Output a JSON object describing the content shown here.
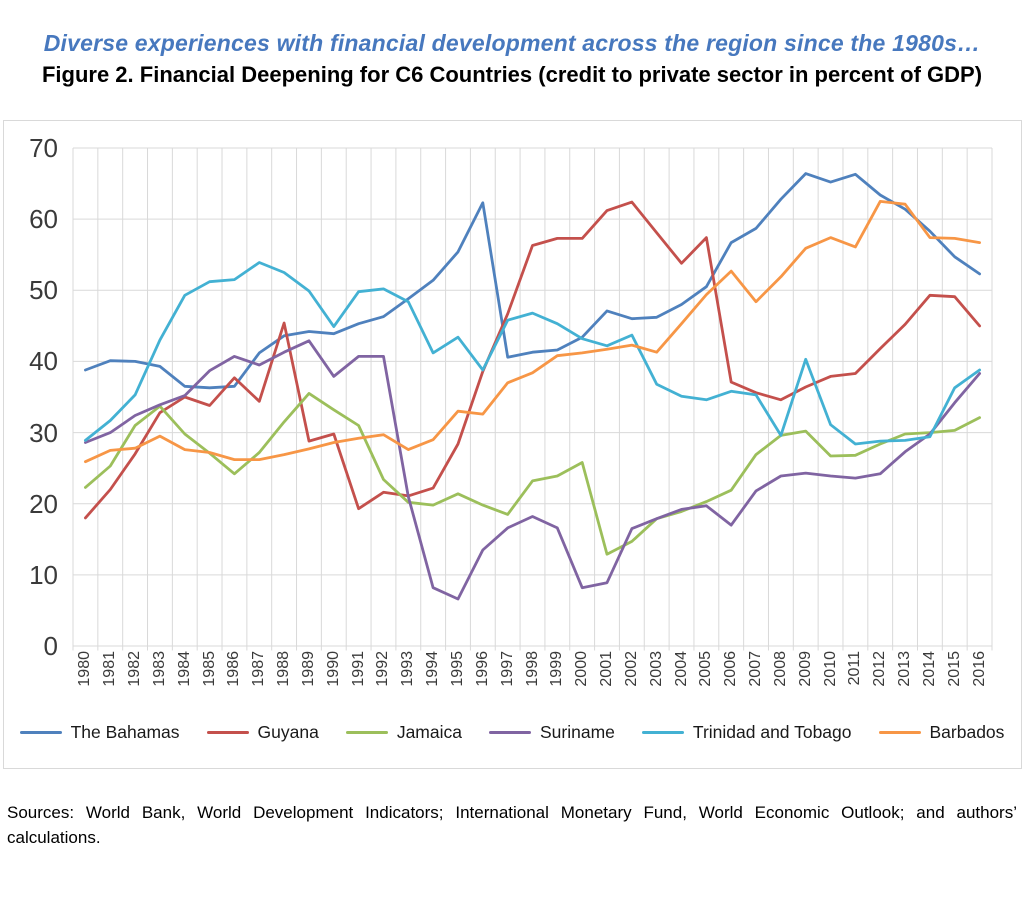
{
  "header": {
    "subtitle": "Diverse experiences with financial development across the region since the 1980s…",
    "figure_caption": "Figure 2. Financial Deepening for C6 Countries (credit to private sector in percent of GDP)"
  },
  "chart_data": {
    "type": "line",
    "x": [
      1980,
      1981,
      1982,
      1983,
      1984,
      1985,
      1986,
      1987,
      1988,
      1989,
      1990,
      1991,
      1992,
      1993,
      1994,
      1995,
      1996,
      1997,
      1998,
      1999,
      2000,
      2001,
      2002,
      2003,
      2004,
      2005,
      2006,
      2007,
      2008,
      2009,
      2010,
      2011,
      2012,
      2013,
      2014,
      2015,
      2016
    ],
    "series": [
      {
        "name": "The Bahamas",
        "color": "#4F81BD",
        "values": [
          38.8,
          40.1,
          40.0,
          39.3,
          36.5,
          36.3,
          36.5,
          41.2,
          43.6,
          44.2,
          43.9,
          45.3,
          46.3,
          48.8,
          51.4,
          55.4,
          62.3,
          40.6,
          41.3,
          41.6,
          43.4,
          47.1,
          46.0,
          46.2,
          48.0,
          50.5,
          56.7,
          58.7,
          62.8,
          66.4,
          65.2,
          66.3,
          63.4,
          61.4,
          58.3,
          54.7,
          52.3
        ]
      },
      {
        "name": "Guyana",
        "color": "#C4504C",
        "values": [
          18.0,
          22.0,
          27.0,
          32.8,
          35.0,
          33.8,
          37.7,
          34.4,
          45.4,
          28.8,
          29.8,
          19.3,
          21.6,
          21.1,
          22.2,
          28.4,
          38.6,
          46.7,
          56.3,
          57.3,
          57.3,
          61.2,
          62.4,
          58.1,
          53.8,
          57.4,
          37.1,
          35.6,
          34.6,
          36.4,
          37.9,
          38.3,
          41.8,
          45.2,
          49.3,
          49.1,
          45.0
        ]
      },
      {
        "name": "Jamaica",
        "color": "#9CBF5B",
        "values": [
          22.3,
          25.3,
          31.0,
          33.7,
          29.8,
          27.1,
          24.2,
          27.2,
          31.5,
          35.5,
          33.2,
          31.0,
          23.4,
          20.2,
          19.8,
          21.4,
          19.8,
          18.5,
          23.2,
          23.9,
          25.8,
          12.9,
          14.7,
          17.9,
          18.9,
          20.3,
          21.9,
          26.9,
          29.6,
          30.2,
          26.7,
          26.8,
          28.4,
          29.8,
          30.0,
          30.3,
          32.1
        ]
      },
      {
        "name": "Suriname",
        "color": "#8064A2",
        "values": [
          28.6,
          30.0,
          32.4,
          33.9,
          35.2,
          38.7,
          40.7,
          39.5,
          41.3,
          42.9,
          37.9,
          40.7,
          40.7,
          21.0,
          8.2,
          6.6,
          13.5,
          16.6,
          18.2,
          16.6,
          8.2,
          8.9,
          16.5,
          17.9,
          19.2,
          19.7,
          17.0,
          21.8,
          23.9,
          24.3,
          23.9,
          23.6,
          24.2,
          27.3,
          29.8,
          34.2,
          38.3
        ]
      },
      {
        "name": "Trinidad and Tobago",
        "color": "#43B1D3",
        "values": [
          28.9,
          31.7,
          35.3,
          43.0,
          49.3,
          51.2,
          51.5,
          53.9,
          52.5,
          49.9,
          44.9,
          49.8,
          50.2,
          48.4,
          41.2,
          43.4,
          38.8,
          45.8,
          46.8,
          45.3,
          43.2,
          42.2,
          43.7,
          36.8,
          35.1,
          34.6,
          35.8,
          35.3,
          29.6,
          40.3,
          31.1,
          28.4,
          28.8,
          28.9,
          29.4,
          36.3,
          38.8
        ]
      },
      {
        "name": "Barbados",
        "color": "#F79646",
        "values": [
          25.9,
          27.5,
          27.8,
          29.5,
          27.6,
          27.2,
          26.2,
          26.2,
          26.9,
          27.7,
          28.6,
          29.2,
          29.7,
          27.6,
          29.0,
          33.0,
          32.6,
          37.0,
          38.4,
          40.8,
          41.2,
          41.7,
          42.3,
          41.3,
          45.3,
          49.4,
          52.7,
          48.4,
          51.9,
          55.9,
          57.4,
          56.1,
          62.5,
          62.1,
          57.4,
          57.3,
          56.7
        ]
      }
    ],
    "ylim": [
      0,
      70
    ],
    "yticks": [
      0,
      10,
      20,
      30,
      40,
      50,
      60,
      70
    ],
    "xlabel": "",
    "ylabel": "",
    "grid": true,
    "gridline_color": "#D9D9D9",
    "legend_position": "bottom"
  },
  "sources": {
    "line1": "Sources: World Bank, World Development Indicators; International Monetary Fund, World Economic Outlook; and authors’",
    "line2": "calculations."
  }
}
